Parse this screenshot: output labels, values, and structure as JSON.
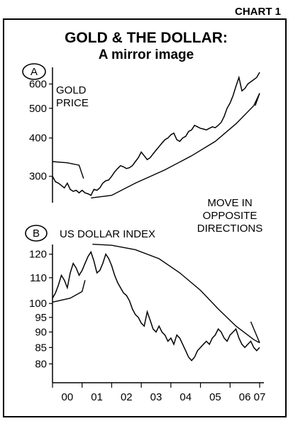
{
  "chart_label": "CHART 1",
  "title": "GOLD & THE DOLLAR:",
  "subtitle": "A mirror image",
  "annotation": [
    "MOVE IN",
    "OPPOSITE",
    "DIRECTIONS"
  ],
  "chart_data": [
    {
      "type": "line",
      "panel": "A",
      "label": [
        "GOLD",
        "PRICE"
      ],
      "y_scale": "log",
      "ylim": [
        250,
        680
      ],
      "y_ticks": [
        300,
        400,
        500,
        600
      ],
      "x_range": [
        2000.0,
        2007.0
      ],
      "series": [
        {
          "x": [
            2000.0,
            2000.1,
            2000.2,
            2000.3,
            2000.4,
            2000.5,
            2000.6,
            2000.7,
            2000.8,
            2000.9,
            2001.0,
            2001.1,
            2001.2,
            2001.3,
            2001.4,
            2001.5,
            2001.6,
            2001.7,
            2001.8,
            2001.9,
            2002.0,
            2002.1,
            2002.2,
            2002.3,
            2002.4,
            2002.5,
            2002.6,
            2002.7,
            2002.8,
            2002.9,
            2003.0,
            2003.1,
            2003.2,
            2003.3,
            2003.4,
            2003.5,
            2003.6,
            2003.7,
            2003.8,
            2003.9,
            2004.0,
            2004.1,
            2004.2,
            2004.3,
            2004.4,
            2004.5,
            2004.6,
            2004.7,
            2004.8,
            2004.9,
            2005.0,
            2005.1,
            2005.2,
            2005.3,
            2005.4,
            2005.5,
            2005.6,
            2005.7,
            2005.8,
            2005.9,
            2006.0,
            2006.1,
            2006.2,
            2006.3,
            2006.4,
            2006.5,
            2006.6,
            2006.7,
            2006.8,
            2006.9,
            2007.0
          ],
          "values": [
            300,
            288,
            285,
            280,
            275,
            285,
            272,
            268,
            270,
            265,
            270,
            265,
            263,
            260,
            272,
            270,
            275,
            285,
            290,
            292,
            300,
            310,
            318,
            325,
            322,
            318,
            320,
            325,
            335,
            345,
            360,
            350,
            340,
            345,
            355,
            365,
            375,
            385,
            395,
            400,
            410,
            415,
            395,
            390,
            400,
            405,
            420,
            425,
            440,
            435,
            430,
            428,
            425,
            430,
            435,
            432,
            440,
            450,
            470,
            500,
            520,
            550,
            590,
            630,
            570,
            580,
            600,
            610,
            620,
            630,
            655
          ]
        }
      ],
      "sketch_lines": [
        {
          "x": [
            2000.0,
            2000.5,
            2000.9,
            2001.05
          ],
          "values": [
            335,
            332,
            326,
            295
          ]
        },
        {
          "x": [
            2001.3,
            2002.0,
            2002.8,
            2003.8,
            2004.7,
            2005.5,
            2006.2,
            2006.8,
            2007.0
          ],
          "values": [
            255,
            260,
            285,
            315,
            350,
            390,
            445,
            510,
            560
          ]
        },
        {
          "x": [
            2006.85,
            2007.0
          ],
          "values": [
            510,
            560
          ]
        }
      ]
    },
    {
      "type": "line",
      "panel": "B",
      "label": "US DOLLAR INDEX",
      "y_scale": "log",
      "ylim": [
        76,
        126
      ],
      "y_ticks": [
        80,
        85,
        90,
        95,
        100,
        110,
        120
      ],
      "x_range": [
        2000.0,
        2007.0
      ],
      "x_ticks": [
        "00",
        "01",
        "02",
        "03",
        "04",
        "05",
        "06",
        "07"
      ],
      "series": [
        {
          "x": [
            2000.0,
            2000.1,
            2000.2,
            2000.3,
            2000.4,
            2000.5,
            2000.6,
            2000.7,
            2000.8,
            2000.9,
            2001.0,
            2001.1,
            2001.2,
            2001.3,
            2001.4,
            2001.5,
            2001.6,
            2001.7,
            2001.8,
            2001.9,
            2002.0,
            2002.1,
            2002.2,
            2002.3,
            2002.4,
            2002.5,
            2002.6,
            2002.7,
            2002.8,
            2002.9,
            2003.0,
            2003.1,
            2003.2,
            2003.3,
            2003.4,
            2003.5,
            2003.6,
            2003.7,
            2003.8,
            2003.9,
            2004.0,
            2004.1,
            2004.2,
            2004.3,
            2004.4,
            2004.5,
            2004.6,
            2004.7,
            2004.8,
            2004.9,
            2005.0,
            2005.1,
            2005.2,
            2005.3,
            2005.4,
            2005.5,
            2005.6,
            2005.7,
            2005.8,
            2005.9,
            2006.0,
            2006.1,
            2006.2,
            2006.3,
            2006.4,
            2006.5,
            2006.6,
            2006.7,
            2006.8,
            2006.9,
            2007.0
          ],
          "values": [
            102,
            104,
            107,
            111,
            109,
            106,
            112,
            116,
            114,
            111,
            113,
            116,
            119,
            121,
            117,
            112,
            113,
            116,
            120,
            118,
            115,
            111,
            108,
            106,
            104,
            103,
            101,
            98,
            96,
            95,
            93,
            92,
            97,
            94,
            91,
            90,
            92,
            90,
            89,
            87,
            88,
            86,
            89,
            88,
            86,
            84,
            82,
            81,
            82,
            84,
            85,
            86,
            87,
            86,
            88,
            89,
            91,
            90,
            88,
            87,
            89,
            90,
            91,
            88,
            86,
            85,
            86,
            87,
            85,
            84,
            85
          ]
        }
      ],
      "sketch_lines": [
        {
          "x": [
            2000.0,
            2000.6,
            2001.0,
            2001.1
          ],
          "values": [
            100.5,
            102,
            104.5,
            109
          ]
        },
        {
          "x": [
            2001.35,
            2002.0,
            2002.8,
            2003.6,
            2004.3,
            2005.0,
            2005.6,
            2006.2,
            2006.8,
            2007.0
          ],
          "values": [
            124.5,
            124,
            122,
            118,
            112,
            105,
            98,
            92,
            87.5,
            86.5
          ]
        },
        {
          "x": [
            2006.7,
            2007.0
          ],
          "values": [
            93.5,
            86.5
          ]
        }
      ]
    }
  ]
}
